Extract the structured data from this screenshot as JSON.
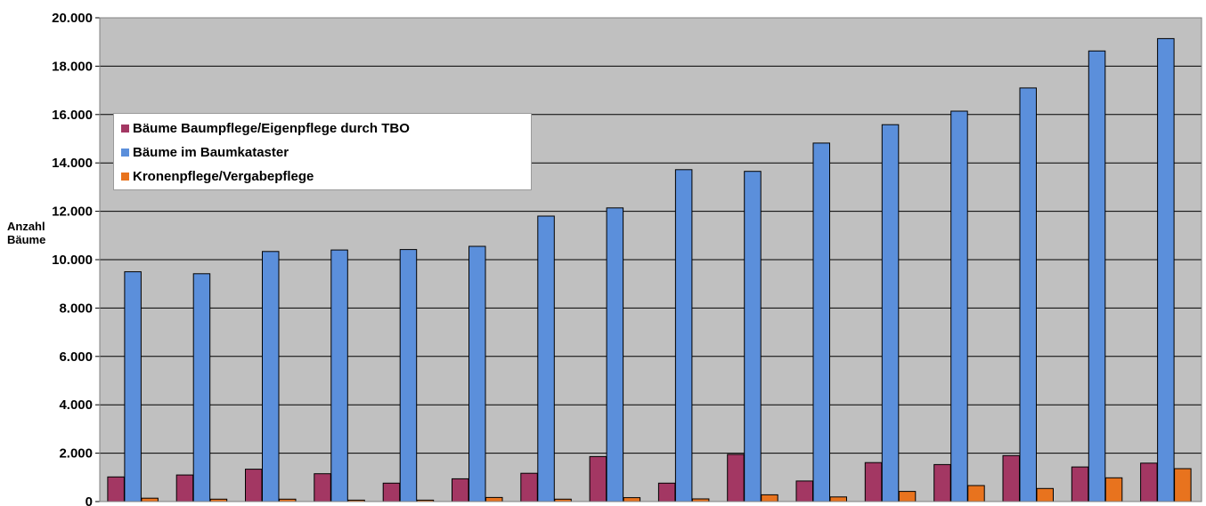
{
  "chart_data": {
    "type": "bar",
    "title": "",
    "xlabel": "",
    "ylabel": "Anzahl Bäume",
    "ylabel_lines": [
      "Anzahl",
      "Bäume"
    ],
    "ylim": [
      0,
      20000
    ],
    "yticks": [
      {
        "value": 0,
        "label": "0"
      },
      {
        "value": 2000,
        "label": "2.000"
      },
      {
        "value": 4000,
        "label": "4.000"
      },
      {
        "value": 6000,
        "label": "6.000"
      },
      {
        "value": 8000,
        "label": "8.000"
      },
      {
        "value": 10000,
        "label": "10.000"
      },
      {
        "value": 12000,
        "label": "12.000"
      },
      {
        "value": 14000,
        "label": "14.000"
      },
      {
        "value": 16000,
        "label": "16.000"
      },
      {
        "value": 18000,
        "label": "18.000"
      },
      {
        "value": 20000,
        "label": "20.000"
      }
    ],
    "grid": true,
    "legend_position": "top-left",
    "background_color": "#c0c0c0",
    "series": [
      {
        "name": "Bäume Baumpflege/Eigenpflege durch TBO",
        "color": "#a33763",
        "values": [
          1020,
          1100,
          1340,
          1150,
          760,
          940,
          1170,
          1860,
          760,
          1950,
          850,
          1610,
          1530,
          1900,
          1430,
          1590
        ]
      },
      {
        "name": "Bäume im Baumkataster",
        "color": "#5b8fdb",
        "values": [
          9500,
          9420,
          10340,
          10400,
          10420,
          10550,
          11800,
          12140,
          13720,
          13650,
          14820,
          15580,
          16140,
          17100,
          18630,
          19140
        ]
      },
      {
        "name": "Kronenpflege/Vergabepflege",
        "color": "#e8731e",
        "values": [
          140,
          100,
          100,
          60,
          60,
          170,
          100,
          160,
          110,
          280,
          190,
          420,
          660,
          540,
          980,
          1360
        ]
      }
    ]
  }
}
